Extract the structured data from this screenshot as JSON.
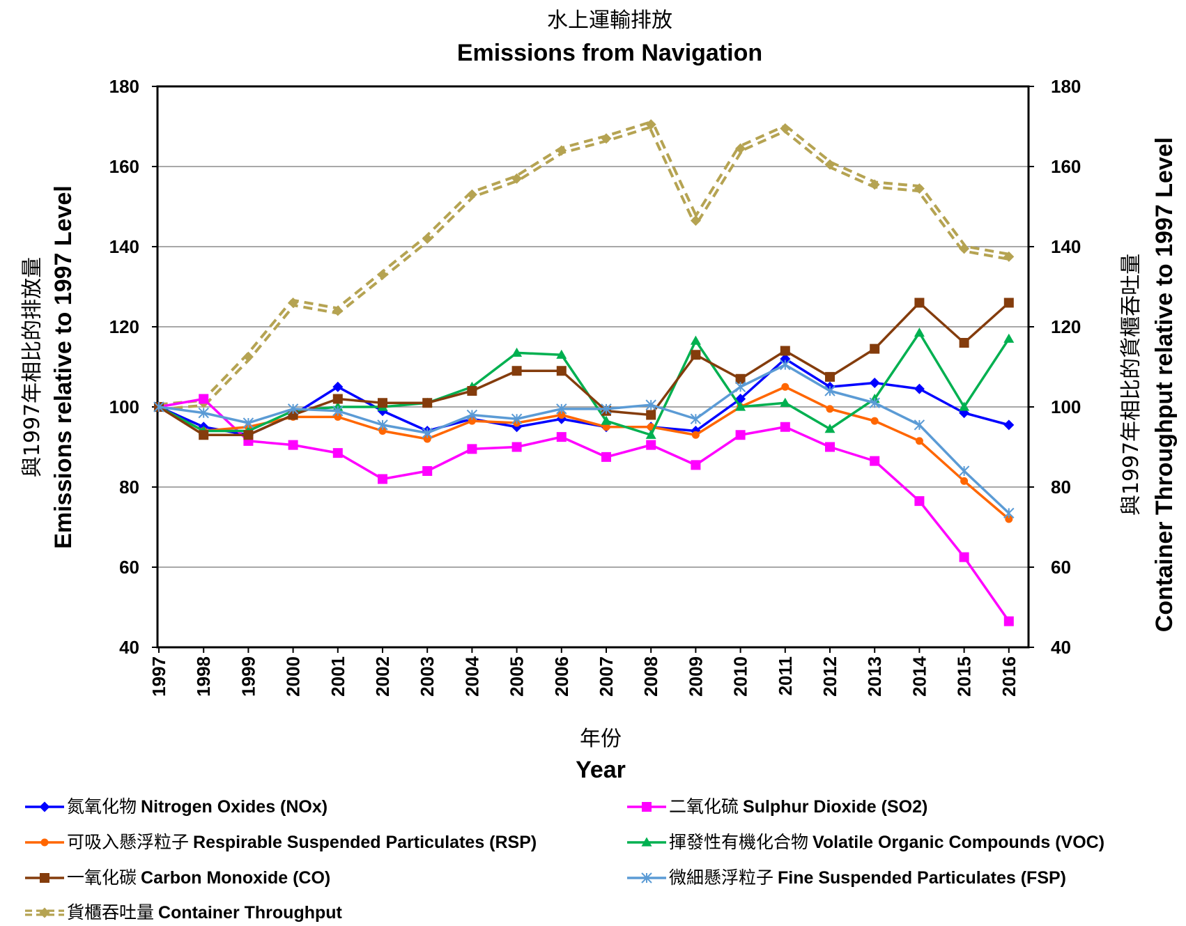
{
  "chart_data": {
    "type": "line",
    "title_zh": "水上運輸排放",
    "title": "Emissions from Navigation",
    "xlabel_zh": "年份",
    "xlabel": "Year",
    "ylabel_left_zh": "與1997年相比的排放量",
    "ylabel_left": "Emissions relative to 1997 Level",
    "ylabel_right_zh": "與1997年相比的貨櫃吞吐量",
    "ylabel_right": "Container Throughput relative to 1997 Level",
    "ylim": [
      40,
      180
    ],
    "y_ticks": [
      "40",
      "60",
      "80",
      "100",
      "120",
      "140",
      "160",
      "180"
    ],
    "categories": [
      "1997",
      "1998",
      "1999",
      "2000",
      "2001",
      "2002",
      "2003",
      "2004",
      "2005",
      "2006",
      "2007",
      "2008",
      "2009",
      "2010",
      "2011",
      "2012",
      "2013",
      "2014",
      "2015",
      "2016"
    ],
    "grid": true,
    "legend_position": "bottom",
    "series": [
      {
        "name_zh": "氮氧化物",
        "name": "Nitrogen Oxides (NOx)",
        "color": "#0000ff",
        "marker": "diamond",
        "dash": false,
        "values": [
          100,
          95,
          93,
          98,
          105,
          99,
          94,
          97,
          95,
          97,
          95,
          95,
          94,
          102,
          112,
          105,
          106,
          104.5,
          98.5,
          95.5
        ]
      },
      {
        "name_zh": "二氧化硫",
        "name": "Sulphur Dioxide (SO2)",
        "color": "#ff00ff",
        "marker": "square",
        "dash": false,
        "values": [
          100,
          102,
          91.5,
          90.5,
          88.5,
          82,
          84,
          89.5,
          90,
          92.5,
          87.5,
          90.5,
          85.5,
          93,
          95,
          90,
          86.5,
          76.5,
          62.5,
          46.5
        ]
      },
      {
        "name_zh": "可吸入懸浮粒子",
        "name": "Respirable Suspended Particulates (RSP)",
        "color": "#ff6600",
        "marker": "circle",
        "dash": false,
        "values": [
          100,
          94,
          95,
          97.5,
          97.5,
          94,
          92,
          96.5,
          96,
          98,
          95,
          95,
          93,
          100,
          105,
          99.5,
          96.5,
          91.5,
          81.5,
          72
        ]
      },
      {
        "name_zh": "揮發性有機化合物",
        "name": "Volatile Organic Compounds (VOC)",
        "color": "#00b050",
        "marker": "triangle",
        "dash": false,
        "values": [
          100,
          94,
          94,
          99,
          100,
          100,
          101,
          105,
          113.5,
          113,
          96.5,
          93,
          116.5,
          100,
          101,
          94.5,
          102,
          118.5,
          100,
          117
        ]
      },
      {
        "name_zh": "一氧化碳",
        "name": "Carbon Monoxide (CO)",
        "color": "#843c0c",
        "marker": "square",
        "dash": false,
        "values": [
          100,
          93,
          93,
          98,
          102,
          101,
          101,
          104,
          109,
          109,
          99,
          98,
          113,
          107,
          114,
          107.5,
          114.5,
          126,
          116,
          126
        ]
      },
      {
        "name_zh": "微細懸浮粒子",
        "name": "Fine Suspended Particulates (FSP)",
        "color": "#5b9bd5",
        "marker": "star",
        "dash": false,
        "values": [
          100,
          98.5,
          96,
          99.5,
          99,
          95.5,
          93.5,
          98,
          97,
          99.5,
          99.5,
          100.5,
          97,
          105,
          110.5,
          104,
          101,
          95.5,
          84,
          73.5
        ]
      },
      {
        "name_zh": "貨櫃吞吐量",
        "name": "Container Throughput",
        "color": "#b5a352",
        "marker": "diamond",
        "dash": true,
        "values": [
          100,
          101,
          112.5,
          126,
          124,
          133,
          142,
          153,
          157,
          164,
          167,
          170.5,
          146.5,
          164.5,
          169.5,
          160.5,
          155.5,
          154.5,
          139.5,
          137.5
        ]
      }
    ]
  }
}
